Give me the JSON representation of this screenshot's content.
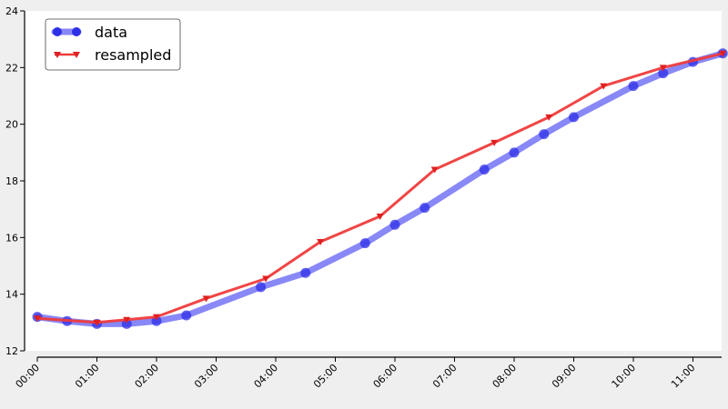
{
  "chart_data": {
    "type": "line",
    "title": "",
    "xlabel": "",
    "ylabel": "",
    "x_ticks": [
      "00:00",
      "01:00",
      "02:00",
      "03:00",
      "04:00",
      "05:00",
      "06:00",
      "07:00",
      "08:00",
      "09:00",
      "10:00",
      "11:00"
    ],
    "y_ticks": [
      "12",
      "14",
      "16",
      "18",
      "20",
      "22",
      "24"
    ],
    "ylim": [
      12,
      24
    ],
    "xlim": [
      "00:00",
      "11:30"
    ],
    "grid": false,
    "legend_position": "top-left",
    "series": [
      {
        "name": "data",
        "color": "#6a6af4",
        "marker": "circle",
        "x": [
          "00:00",
          "00:30",
          "01:00",
          "01:30",
          "02:00",
          "02:30",
          "03:45",
          "04:30",
          "05:30",
          "06:00",
          "06:30",
          "07:30",
          "08:00",
          "08:30",
          "09:00",
          "10:00",
          "10:30",
          "11:00",
          "11:30"
        ],
        "y": [
          13.2,
          13.05,
          12.95,
          12.95,
          13.05,
          13.25,
          14.25,
          14.75,
          15.8,
          16.45,
          17.05,
          18.4,
          19.0,
          19.65,
          20.25,
          21.35,
          21.8,
          22.2,
          22.5
        ]
      },
      {
        "name": "resampled",
        "color": "#ef3b3b",
        "marker": "triangle-down",
        "x": [
          "00:00",
          "01:00",
          "01:30",
          "02:00",
          "02:50",
          "03:50",
          "04:45",
          "05:45",
          "06:40",
          "07:40",
          "08:35",
          "09:30",
          "10:30",
          "11:30"
        ],
        "y": [
          13.15,
          13.0,
          13.1,
          13.2,
          13.85,
          14.55,
          15.85,
          16.75,
          18.4,
          19.35,
          20.25,
          21.35,
          22.0,
          22.5
        ]
      }
    ]
  }
}
